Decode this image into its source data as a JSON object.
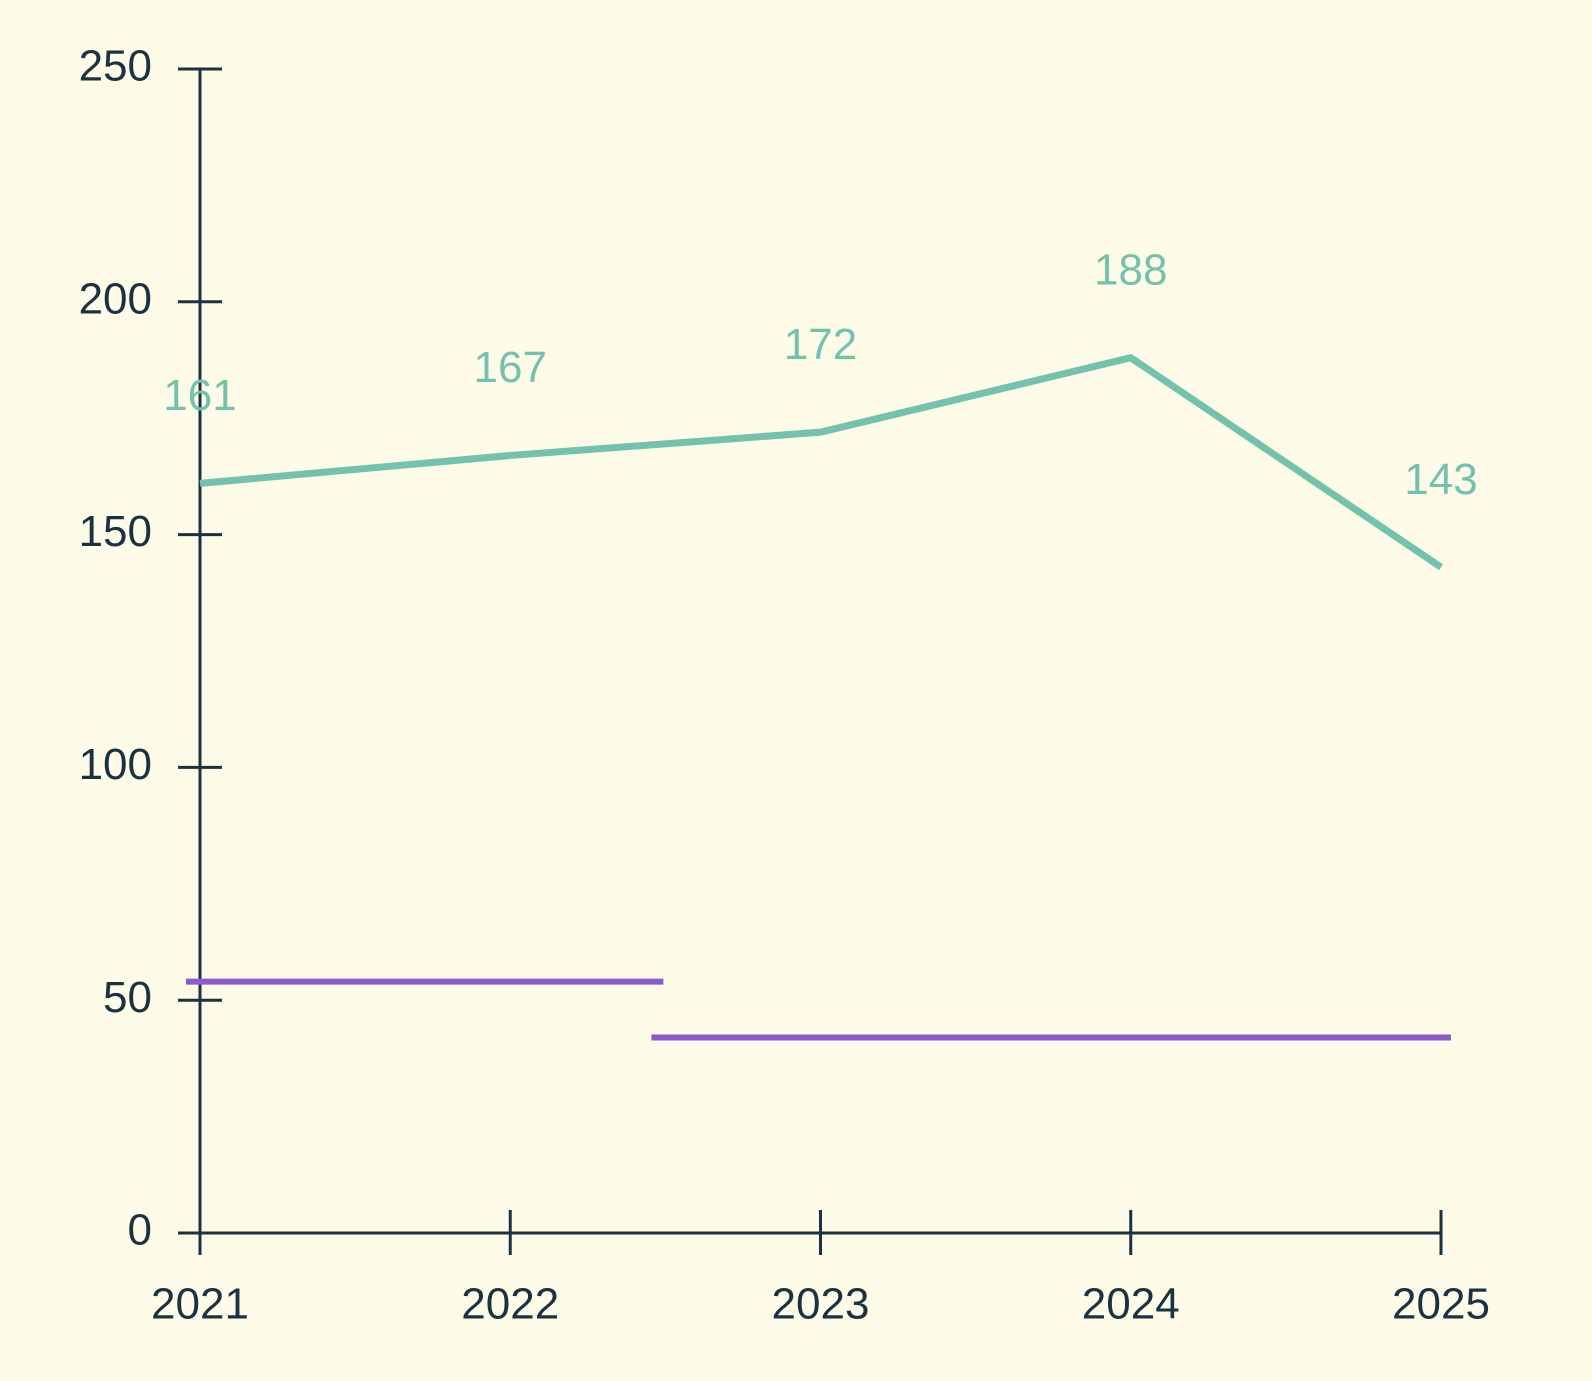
{
  "chart_data": {
    "type": "line",
    "x": [
      2021,
      2022,
      2023,
      2024,
      2025
    ],
    "series": [
      {
        "color": "#72c2ad",
        "values": [
          161,
          167,
          172,
          188,
          143
        ]
      }
    ],
    "segments": {
      "color": "#8a5cc9",
      "items": [
        {
          "x": [
            2021,
            2022.5
          ],
          "value": 54
        },
        {
          "x": [
            2022.5,
            2025
          ],
          "value": 42
        }
      ]
    },
    "xlim": [
      2021,
      2025
    ],
    "xticks": [
      2021,
      2022,
      2023,
      2024,
      2025
    ],
    "ylim": [
      0,
      250
    ],
    "yticks": [
      0,
      50,
      100,
      150,
      200,
      250
    ],
    "data_labels": true,
    "grid": false
  }
}
